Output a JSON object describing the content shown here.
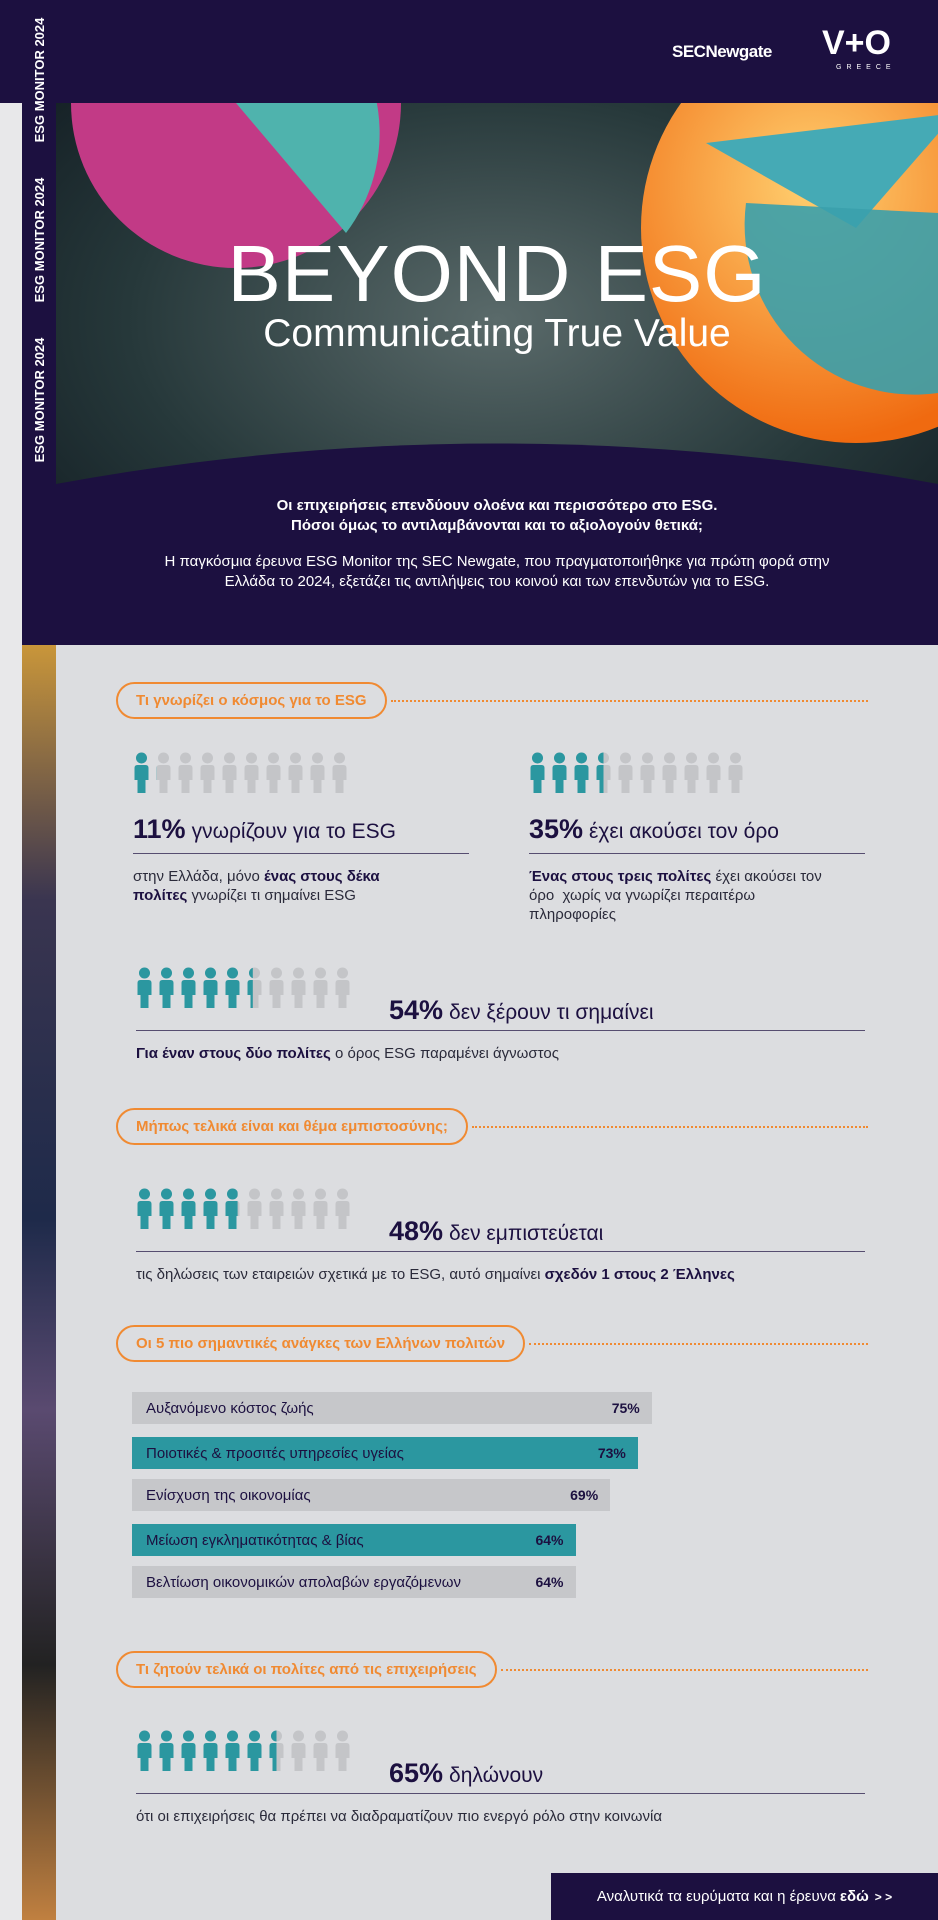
{
  "header": {
    "brand_left": "SECNewgate",
    "brand_right": "V+O",
    "brand_right_sub": "GREECE"
  },
  "sidebar_label": "ESG MONITOR 2024",
  "hero": {
    "title": "BEYOND ESG",
    "subtitle": "Communicating True Value",
    "intro_bold": [
      "Οι επιχειρήσεις επενδύουν ολοένα και περισσότερο στο ESG.",
      "Πόσοι όμως το αντιλαμβάνονται και το αξιολογούν θετικά;"
    ],
    "intro": "Η παγκόσμια έρευνα ESG Monitor της SEC Newgate, που πραγματοποιήθηκε για πρώτη φορά στην Ελλάδα το 2024, εξετάζει τις αντιλήψεις του κοινού και των επενδυτών για το ESG."
  },
  "sections": [
    {
      "heading": "Τι γνωρίζει ο κόσμος για το ESG",
      "stats": [
        {
          "value": 11,
          "value_label": "11%",
          "text": "γνωρίζουν για το ESG",
          "desc": [
            {
              "text": "στην Ελλάδα, μόνο "
            },
            {
              "text": "ένας στους δέκα πολίτες",
              "bold": true
            },
            {
              "text": " γνωρίζει τι σημαίνει ESG"
            }
          ]
        },
        {
          "value": 35,
          "value_label": "35%",
          "text": "έχει ακούσει τον όρο",
          "desc": [
            {
              "text": "Ένας στους τρεις πολίτες",
              "bold": true
            },
            {
              "text": " έχει ακούσει τον όρο  χωρίς να γνωρίζει περαιτέρω πληροφορίες"
            }
          ]
        },
        {
          "value": 54,
          "value_label": "54%",
          "text": "δεν ξέρουν τι σημαίνει",
          "desc": [
            {
              "text": "Για έναν στους δύο πολίτες",
              "bold": true
            },
            {
              "text": " ο όρος ESG παραμένει άγνωστος"
            }
          ]
        }
      ]
    },
    {
      "heading": "Μήπως τελικά είναι και θέμα εμπιστοσύνης;",
      "stats": [
        {
          "value": 48,
          "value_label": "48%",
          "text": "δεν εμπιστεύεται",
          "desc": [
            {
              "text": "τις δηλώσεις των εταιρειών σχετικά με το ESG, αυτό σημαίνει "
            },
            {
              "text": "σχεδόν 1 στους 2 Έλληνες",
              "bold": true
            }
          ]
        }
      ]
    },
    {
      "heading": "Οι 5 πιο σημαντικές ανάγκες των Ελλήνων πολιτών",
      "needs": {
        "categories": [
          "Αυξανόμενο κόστος ζωής",
          "Ποιοτικές & προσιτές υπηρεσίες υγείας",
          "Ενίσχυση της οικονομίας",
          "Μείωση εγκληματικότητας & βίας",
          "Βελτίωση οικονομικών απολαβών εργαζόμενων"
        ],
        "values": [
          75,
          73,
          69,
          64,
          64
        ],
        "value_labels": [
          "75%",
          "73%",
          "69%",
          "64%",
          "64%"
        ],
        "colors": [
          "#c6c7ca",
          "#2b97a0",
          "#c6c7ca",
          "#2b97a0",
          "#c6c7ca"
        ]
      }
    },
    {
      "heading": "Τι ζητούν τελικά οι πολίτες από τις επιχειρήσεις",
      "stats": [
        {
          "value": 65,
          "value_label": "65%",
          "text": "δηλώνουν",
          "desc": [
            {
              "text": "ότι οι επιχειρήσεις θα πρέπει να διαδραματίζουν πιο ενεργό ρόλο στην κοινωνία"
            }
          ]
        }
      ]
    }
  ],
  "footer": {
    "text": "Αναλυτικά τα ευρύματα και η έρευνα ",
    "link": "εδώ",
    "arrows": "> >"
  }
}
